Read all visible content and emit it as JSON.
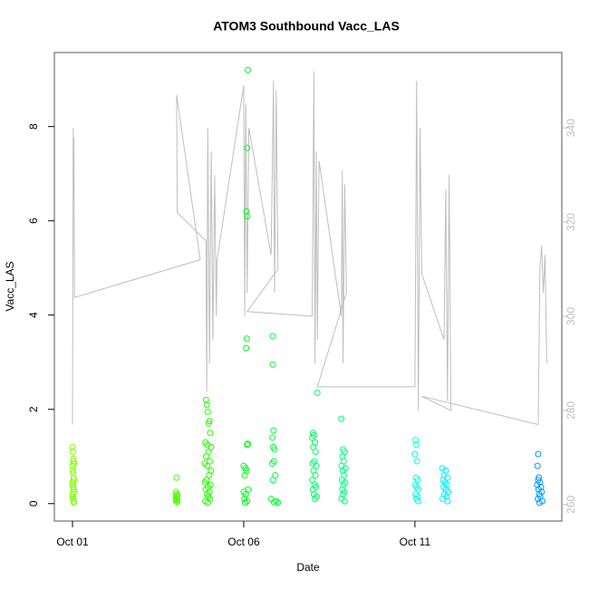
{
  "chart_data": {
    "type": "scatter",
    "title": "ATOM3 Southbound Vacc_LAS",
    "x_label": "Date",
    "y_label": "Vacc_LAS",
    "xlim": [
      -0.53,
      14.29
    ],
    "xticks": [
      {
        "value": 0,
        "label": "Oct 01"
      },
      {
        "value": 5,
        "label": "Oct 06"
      },
      {
        "value": 10,
        "label": "Oct 11"
      }
    ],
    "ylim": [
      -0.37,
      9.57
    ],
    "yticks": [
      0,
      2,
      4,
      6,
      8
    ],
    "y2lim": [
      256.5,
      356
    ],
    "y2ticks": [
      260,
      280,
      300,
      320,
      340
    ],
    "series": [
      {
        "type": "scatter",
        "color": "#7fff00",
        "x": [
          0,
          0.01,
          0.02,
          0.03,
          0.04,
          0,
          0.01,
          0.02,
          0.03,
          0.04,
          0,
          0.01,
          0.02,
          0.03,
          0.04,
          0,
          0.01,
          0.02,
          0.03,
          0.04
        ],
        "values": [
          1.2,
          1.1,
          0.95,
          0.9,
          0.85,
          0.8,
          0.7,
          0.65,
          0.55,
          0.5,
          0.45,
          0.4,
          0.35,
          0.3,
          0.25,
          0.2,
          0.15,
          0.1,
          0.05,
          0.02
        ]
      },
      {
        "type": "scatter",
        "color": "#4cff00",
        "x": [
          3.04,
          3.02,
          3.05,
          3.03,
          3.06,
          3.02,
          3.04,
          3.05,
          3.03,
          3.06
        ],
        "values": [
          0.55,
          0.25,
          0.2,
          0.18,
          0.15,
          0.12,
          0.1,
          0.08,
          0.05,
          0.03
        ]
      },
      {
        "type": "scatter",
        "color": "#26ff00",
        "x": [
          3.9,
          3.92,
          3.95,
          4.0,
          3.98,
          4.02,
          3.88,
          3.93,
          4.05,
          3.97,
          3.9,
          4.01,
          3.86,
          3.94,
          4.04,
          3.99,
          3.91,
          3.87,
          4.03,
          3.96,
          3.89,
          4.0,
          3.93,
          3.97,
          4.02,
          3.88,
          3.95
        ],
        "values": [
          2.2,
          2.1,
          1.95,
          1.75,
          1.7,
          1.5,
          1.3,
          1.25,
          1.2,
          1.1,
          1.0,
          0.9,
          0.85,
          0.8,
          0.7,
          0.6,
          0.5,
          0.45,
          0.4,
          0.35,
          0.3,
          0.25,
          0.2,
          0.15,
          0.1,
          0.05,
          0.02
        ]
      },
      {
        "type": "scatter",
        "color": "#00ff19",
        "x": [
          5.12,
          5.1,
          5.08,
          5.1,
          5.09,
          5.07,
          5.12,
          5.1,
          5.0,
          5.05,
          5.08,
          5.03,
          5.13,
          5.0,
          5.06,
          5.02,
          5.1,
          5.04
        ],
        "values": [
          9.2,
          7.55,
          6.2,
          6.1,
          3.5,
          3.3,
          1.27,
          1.25,
          0.8,
          0.75,
          0.7,
          0.6,
          0.3,
          0.25,
          0.2,
          0.1,
          0.05,
          0.02
        ]
      },
      {
        "type": "scatter",
        "color": "#00ff33",
        "x": [
          5.85,
          5.85,
          5.87,
          5.84,
          5.86,
          5.9,
          5.88,
          5.83,
          5.92,
          5.86,
          5.8,
          5.95,
          5.88,
          6.0
        ],
        "values": [
          3.55,
          2.95,
          1.55,
          1.4,
          1.2,
          1.15,
          0.9,
          0.85,
          0.6,
          0.5,
          0.1,
          0.05,
          0.03,
          0.02
        ]
      },
      {
        "type": "scatter",
        "color": "#00ff66",
        "x": [
          7.15,
          7.02,
          7.05,
          7.0,
          7.08,
          7.03,
          7.1,
          7.06,
          7.01,
          7.12,
          7.04,
          7.09,
          7.0,
          7.07,
          7.11,
          7.02,
          7.05,
          7.13,
          7.08
        ],
        "values": [
          2.35,
          1.5,
          1.45,
          1.4,
          1.3,
          1.2,
          1.1,
          0.9,
          0.85,
          0.8,
          0.7,
          0.6,
          0.5,
          0.4,
          0.35,
          0.3,
          0.2,
          0.15,
          0.1
        ]
      },
      {
        "type": "scatter",
        "color": "#00ff80",
        "x": [
          7.85,
          7.9,
          7.95,
          7.88,
          7.92,
          7.86,
          7.97,
          7.89,
          7.93,
          7.87,
          7.96,
          7.91,
          7.88,
          7.94,
          7.9,
          7.86,
          7.95
        ],
        "values": [
          1.8,
          1.15,
          1.1,
          1.0,
          0.9,
          0.8,
          0.75,
          0.7,
          0.6,
          0.5,
          0.45,
          0.4,
          0.3,
          0.25,
          0.2,
          0.1,
          0.05
        ]
      },
      {
        "type": "scatter",
        "color": "#00ffe5",
        "x": [
          10.02,
          10.04,
          10.0,
          10.06,
          10.03,
          10.08,
          10.01,
          10.05,
          10.1,
          10.02,
          10.07,
          10.04,
          10.09
        ],
        "values": [
          1.35,
          1.25,
          1.05,
          0.9,
          0.55,
          0.5,
          0.4,
          0.35,
          0.3,
          0.2,
          0.15,
          0.1,
          0.05
        ]
      },
      {
        "type": "scatter",
        "color": "#00f0ff",
        "x": [
          10.8,
          10.9,
          10.85,
          10.95,
          10.82,
          10.88,
          10.93,
          10.84,
          10.9,
          10.97,
          10.86,
          10.92,
          10.81,
          10.95
        ],
        "values": [
          0.75,
          0.7,
          0.6,
          0.55,
          0.5,
          0.45,
          0.4,
          0.35,
          0.3,
          0.25,
          0.2,
          0.15,
          0.1,
          0.05
        ]
      },
      {
        "type": "scatter",
        "color": "#0099ff",
        "x": [
          13.6,
          13.58,
          13.62,
          13.6,
          13.65,
          13.57,
          13.68,
          13.61,
          13.7,
          13.63,
          13.66,
          13.59,
          13.72,
          13.64
        ],
        "values": [
          1.05,
          0.8,
          0.55,
          0.5,
          0.45,
          0.4,
          0.35,
          0.3,
          0.25,
          0.2,
          0.15,
          0.1,
          0.05,
          0.02
        ]
      },
      {
        "type": "line",
        "axis": "y2",
        "color": "#bebebe",
        "x": [
          0,
          0.02,
          0.03,
          0.04,
          0.06,
          3.73,
          3.04,
          3.06,
          3.9,
          3.92,
          3.95,
          4.0,
          4.05,
          4.1,
          4.15,
          4.2,
          4.22,
          5.0,
          5.03,
          5.06,
          5.1,
          5.15,
          5.8,
          5.87,
          5.9,
          5.95,
          6.0,
          5.1,
          7.0,
          7.05,
          7.08,
          7.12,
          7.15,
          7.2,
          7.85,
          7.88,
          7.9,
          7.95,
          8.0,
          7.15,
          10.0,
          10.05,
          10.1,
          10.15,
          10.2,
          10.85,
          10.9,
          10.95,
          11.0,
          11.05,
          10.2,
          13.6,
          13.65,
          13.7,
          13.75,
          13.8,
          13.85
        ],
        "values": [
          277,
          340,
          325,
          338,
          304,
          312,
          347,
          322,
          316,
          284,
          340,
          290,
          335,
          295,
          330,
          300,
          312,
          349,
          300,
          345,
          305,
          340,
          313,
          350,
          305,
          348,
          310,
          301,
          300,
          352,
          290,
          335,
          295,
          333,
          300,
          331,
          290,
          328,
          305,
          285,
          285,
          350,
          280,
          340,
          309,
          295,
          327,
          282,
          330,
          280,
          283,
          277,
          310,
          315,
          305,
          313,
          290
        ]
      }
    ]
  }
}
